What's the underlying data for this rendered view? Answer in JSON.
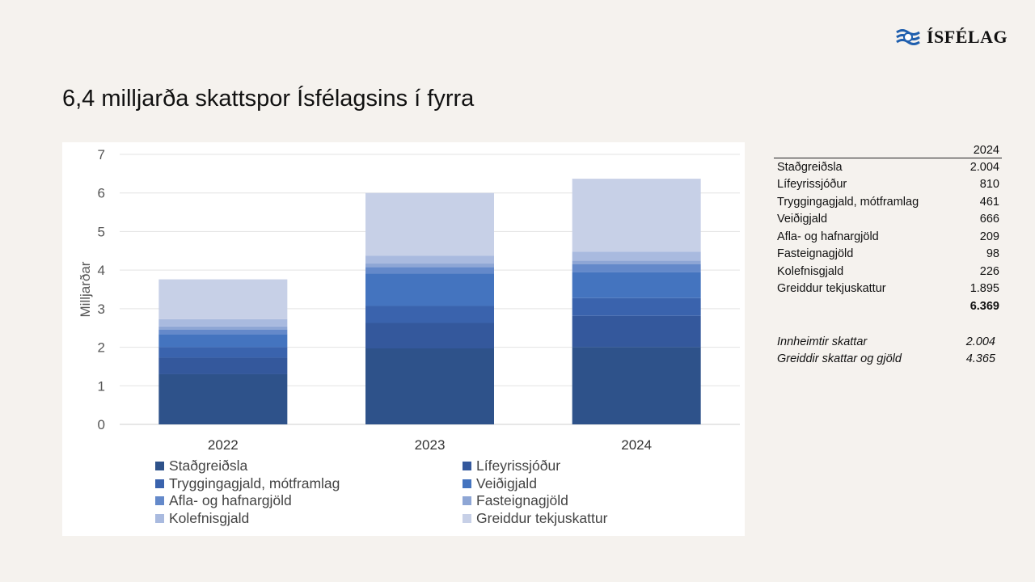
{
  "logo": {
    "text": "ÍSFÉLAG",
    "mark_color": "#1f5fae"
  },
  "slide_title": "6,4 milljarða skattspor Ísfélagsins í fyrra",
  "chart_data": {
    "type": "bar",
    "stacked": true,
    "categories": [
      "2022",
      "2023",
      "2024"
    ],
    "ylabel": "Milljarðar",
    "ylim": [
      0,
      7
    ],
    "yticks": [
      "0",
      "1",
      "2",
      "3",
      "4",
      "5",
      "6",
      "7"
    ],
    "grid": true,
    "legend_position": "bottom",
    "series": [
      {
        "name": "Staðgreiðsla",
        "color": "#2e528a",
        "values": [
          1.3,
          1.97,
          2.004
        ]
      },
      {
        "name": "Lífeyrissjóður",
        "color": "#34589c",
        "values": [
          0.43,
          0.66,
          0.81
        ]
      },
      {
        "name": "Tryggingagjald, mótframlag",
        "color": "#3a63ad",
        "values": [
          0.27,
          0.44,
          0.461
        ]
      },
      {
        "name": "Veiðigjald",
        "color": "#4474bf",
        "values": [
          0.34,
          0.84,
          0.666
        ]
      },
      {
        "name": "Afla- og hafnargjöld",
        "color": "#6489ca",
        "values": [
          0.12,
          0.17,
          0.209
        ]
      },
      {
        "name": "Fasteignagjöld",
        "color": "#8ea6d5",
        "values": [
          0.08,
          0.09,
          0.098
        ]
      },
      {
        "name": "Kolefnisgjald",
        "color": "#a9badf",
        "values": [
          0.19,
          0.2,
          0.226
        ]
      },
      {
        "name": "Greiddur tekjuskattur",
        "color": "#c7d0e7",
        "values": [
          1.03,
          1.63,
          1.895
        ]
      }
    ]
  },
  "table": {
    "header": "2024",
    "rows": [
      {
        "label": "Staðgreiðsla",
        "value": "2.004"
      },
      {
        "label": "Lífeyrissjóður",
        "value": "810"
      },
      {
        "label": "Tryggingagjald, mótframlag",
        "value": "461"
      },
      {
        "label": "Veiðigjald",
        "value": "666"
      },
      {
        "label": "Afla- og hafnargjöld",
        "value": "209"
      },
      {
        "label": "Fasteignagjöld",
        "value": "98"
      },
      {
        "label": "Kolefnisgjald",
        "value": "226"
      },
      {
        "label": "Greiddur tekjuskattur",
        "value": "1.895"
      }
    ],
    "total": "6.369"
  },
  "summary": [
    {
      "label": "Innheimtir skattar",
      "value": "2.004"
    },
    {
      "label": "Greiddir skattar og gjöld",
      "value": "4.365"
    }
  ]
}
